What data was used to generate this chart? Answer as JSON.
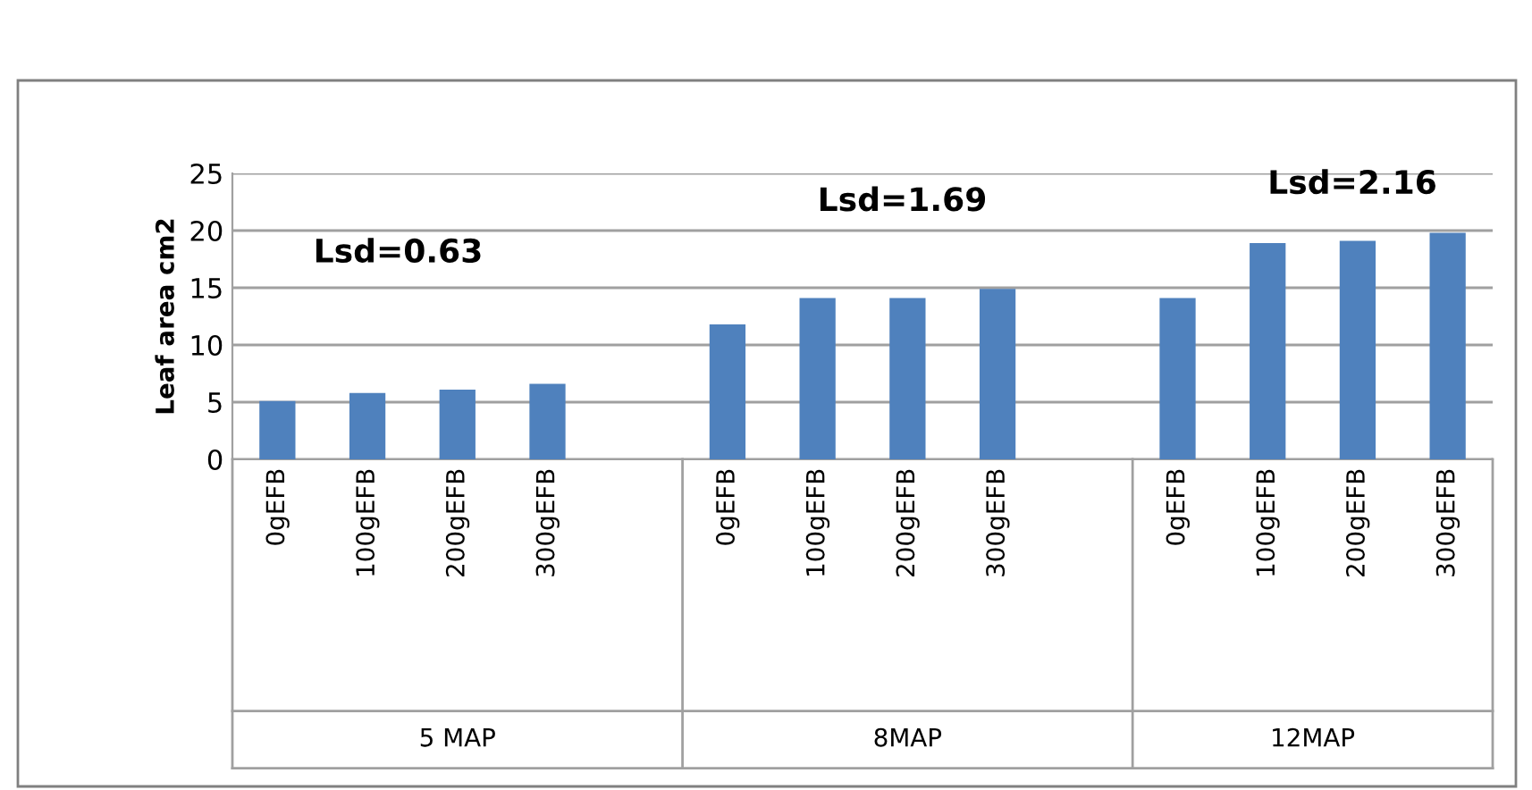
{
  "chart_data": {
    "type": "bar",
    "ylabel": "Leaf area cm2",
    "categories": [
      "0gEFB",
      "100gEFB",
      "200gEFB",
      "300gEFB",
      null,
      "0gEFB",
      "100gEFB",
      "200gEFB",
      "300gEFB",
      null,
      "0gEFB",
      "100gEFB",
      "200gEFB",
      "300gEFB"
    ],
    "values": [
      5.1,
      5.8,
      6.1,
      6.6,
      null,
      11.8,
      14.1,
      14.1,
      14.9,
      null,
      14.1,
      18.9,
      19.1,
      19.8
    ],
    "color": "#4f81bd",
    "ylim": [
      0,
      25
    ],
    "yticks": [
      0,
      5,
      10,
      15,
      20,
      25
    ],
    "grid": "y",
    "legend": false,
    "annotations": [
      "5 MAP",
      "8MAP",
      "12MAP",
      "Lsd=0.63",
      "Lsd=1.69",
      "Lsd=2.16"
    ]
  }
}
